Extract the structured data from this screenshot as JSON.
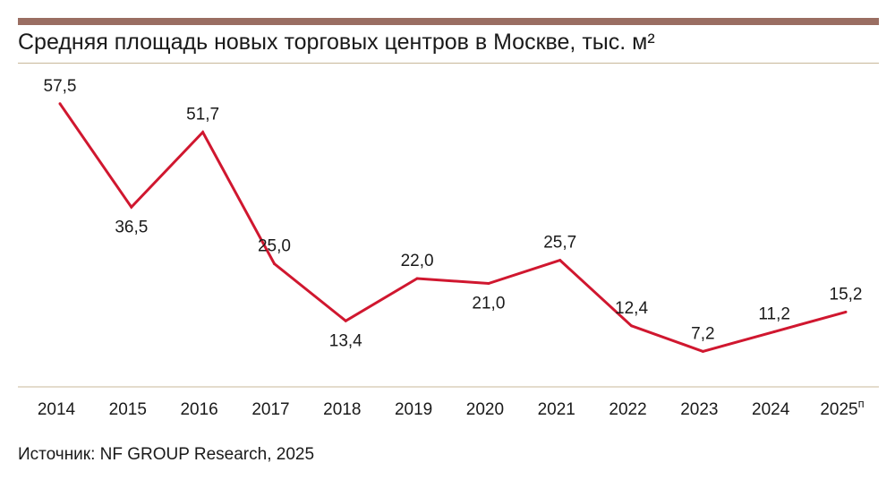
{
  "chart_data": {
    "type": "line",
    "title": "Средняя площадь новых торговых центров в Москве, тыс. м²",
    "categories": [
      "2014",
      "2015",
      "2016",
      "2017",
      "2018",
      "2019",
      "2020",
      "2021",
      "2022",
      "2023",
      "2024",
      "2025"
    ],
    "category_superscripts": [
      "",
      "",
      "",
      "",
      "",
      "",
      "",
      "",
      "",
      "",
      "",
      "п"
    ],
    "data_labels": [
      "57,5",
      "36,5",
      "51,7",
      "25,0",
      "13,4",
      "22,0",
      "21,0",
      "25,7",
      "12,4",
      "7,2",
      "11,2",
      "15,2"
    ],
    "label_positions": [
      "above",
      "below",
      "above",
      "above",
      "below",
      "above",
      "below",
      "above",
      "above",
      "above",
      "above",
      "above"
    ],
    "series": [
      {
        "values": [
          57.5,
          36.5,
          51.7,
          25.0,
          13.4,
          22.0,
          21.0,
          25.7,
          12.4,
          7.2,
          11.2,
          15.2
        ]
      }
    ],
    "ylim": [
      0,
      64
    ],
    "grid": false,
    "legend": "none",
    "line_color": "#d0172f",
    "axis_color": "#c8b89a"
  },
  "source": "Источник: NF GROUP Research, 2025"
}
